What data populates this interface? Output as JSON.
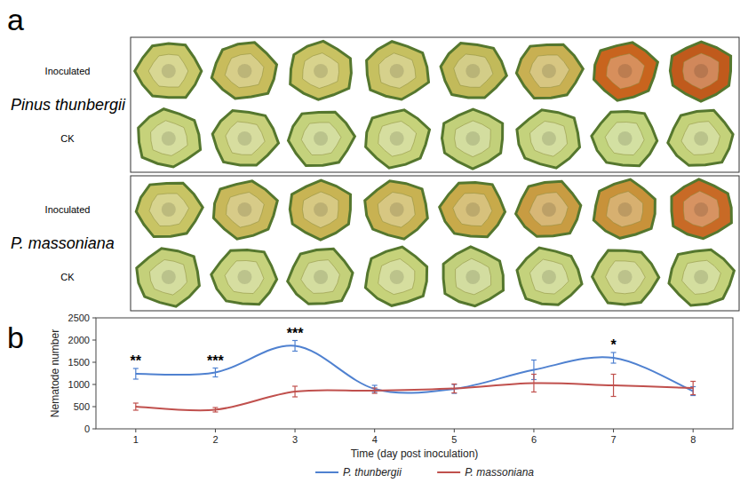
{
  "panel_letters": [
    "a",
    "b"
  ],
  "panel_a": {
    "species": [
      {
        "name": "Pinus thunbergii",
        "rows": [
          {
            "label": "Inoculated",
            "colors": [
              "#c9c86a",
              "#c8bc5c",
              "#c9c262",
              "#c6c060",
              "#c2ba5a",
              "#c8b052",
              "#c8641e",
              "#c05a1c"
            ]
          },
          {
            "label": "CK",
            "colors": [
              "#c6d27a",
              "#c8d07a",
              "#c4d27c",
              "#c6d27a",
              "#c2d07a",
              "#c4d27c",
              "#c2d47e",
              "#c4d27a"
            ]
          }
        ]
      },
      {
        "name": "P. massoniana",
        "rows": [
          {
            "label": "Inoculated",
            "colors": [
              "#c8c464",
              "#c8b85a",
              "#c8b454",
              "#c8b252",
              "#c8aa4a",
              "#c89c42",
              "#c8923a",
              "#c86a26"
            ]
          },
          {
            "label": "CK",
            "colors": [
              "#c4d07a",
              "#c6d27c",
              "#c4d07a",
              "#c6d27a",
              "#c2d07c",
              "#c4d27c",
              "#c6d07a",
              "#c4d27a"
            ]
          }
        ]
      }
    ]
  },
  "chart_data": {
    "type": "line",
    "x_label": "Time (day post inoculation)",
    "y_label": "Nematode number",
    "x": [
      1,
      2,
      3,
      4,
      5,
      6,
      7,
      8
    ],
    "xlim": [
      0.5,
      8.5
    ],
    "xticks": [
      1,
      2,
      3,
      4,
      5,
      6,
      7,
      8
    ],
    "ylim": [
      0,
      2500
    ],
    "yticks": [
      0,
      500,
      1000,
      1500,
      2000,
      2500
    ],
    "grid": false,
    "legend": "bottom",
    "line_style": "smooth",
    "series": [
      {
        "name": "P. thunbergii",
        "color": "#4f81d0",
        "values": [
          1240,
          1270,
          1870,
          900,
          900,
          1330,
          1600,
          850
        ],
        "errors": [
          120,
          100,
          120,
          80,
          100,
          220,
          120,
          100
        ]
      },
      {
        "name": "P. massoniana",
        "color": "#c0504d",
        "values": [
          500,
          430,
          840,
          860,
          910,
          1030,
          980,
          920
        ],
        "errors": [
          80,
          50,
          120,
          60,
          100,
          200,
          250,
          150
        ]
      }
    ],
    "annotations": [
      {
        "x": 1,
        "text": "**"
      },
      {
        "x": 2,
        "text": "***"
      },
      {
        "x": 3,
        "text": "***"
      },
      {
        "x": 7,
        "text": "*"
      }
    ]
  }
}
